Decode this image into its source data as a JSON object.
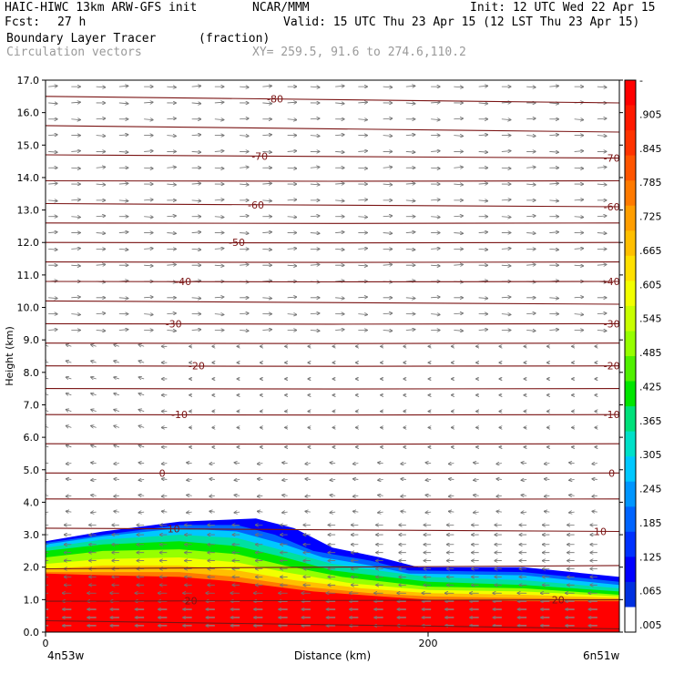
{
  "header": {
    "model": "HAIC-HIWC 13km ARW-GFS init",
    "org": "NCAR/MMM",
    "init": "Init: 12 UTC Wed 22 Apr 15",
    "fcst_label": "Fcst:",
    "fcst_value": "27 h",
    "valid": "Valid: 15 UTC Thu 23 Apr 15 (12 LST Thu 23 Apr 15)",
    "field_name": "Boundary Layer Tracer",
    "field_units": "(fraction)",
    "overlay_name": "Circulation vectors",
    "xy_range": "XY= 259.5, 91.6 to 274.6,110.2"
  },
  "chart_data": {
    "type": "heatmap",
    "ylabel": "Height (km)",
    "xlabel": "Distance (km)",
    "xlim": [
      0,
      300
    ],
    "ylim": [
      0,
      17
    ],
    "x_ticks": [
      0,
      200
    ],
    "x_tick_labels": [
      "0",
      "200"
    ],
    "x_end_labels": [
      "4n53w",
      "6n51w"
    ],
    "y_ticks": [
      0,
      1,
      2,
      3,
      4,
      5,
      6,
      7,
      8,
      9,
      10,
      11,
      12,
      13,
      14,
      15,
      16,
      17
    ],
    "y_tick_labels": [
      "0.0",
      "1.0",
      "2.0",
      "3.0",
      "4.0",
      "5.0",
      "6.0",
      "7.0",
      "8.0",
      "9.0",
      "10.0",
      "11.0",
      "12.0",
      "13.0",
      "14.0",
      "15.0",
      "16.0",
      "17.0"
    ],
    "colorbar": {
      "labels": [
        "-",
        ".905",
        ".845",
        ".785",
        ".725",
        ".665",
        ".605",
        ".545",
        ".485",
        ".425",
        ".365",
        ".305",
        ".245",
        ".185",
        ".125",
        ".065",
        ".005"
      ],
      "colors_top_to_bottom": [
        "#ff0000",
        "#ff1a00",
        "#ff3300",
        "#ff5500",
        "#ff7a00",
        "#ff9e00",
        "#ffbf00",
        "#ffe000",
        "#f2ff00",
        "#c8ff00",
        "#96ff00",
        "#50f000",
        "#00e600",
        "#00e07a",
        "#00e0c8",
        "#00c8ff",
        "#0096ff",
        "#0064ff",
        "#0032ff",
        "#0000ff",
        "#0030e0",
        "#ffffff"
      ]
    },
    "tracer_layers": [
      {
        "level": 0.005,
        "color": "#0000ff",
        "top": [
          [
            0,
            2.8
          ],
          [
            30,
            3.1
          ],
          [
            70,
            3.4
          ],
          [
            110,
            3.5
          ],
          [
            130,
            3.2
          ],
          [
            150,
            2.6
          ],
          [
            175,
            2.3
          ],
          [
            195,
            2.0
          ],
          [
            250,
            2.0
          ],
          [
            300,
            1.7
          ]
        ]
      },
      {
        "level": 0.065,
        "color": "#0064ff",
        "top": [
          [
            0,
            2.75
          ],
          [
            30,
            3.0
          ],
          [
            70,
            3.3
          ],
          [
            100,
            3.3
          ],
          [
            120,
            3.0
          ],
          [
            140,
            2.5
          ],
          [
            170,
            2.2
          ],
          [
            190,
            1.9
          ],
          [
            250,
            1.85
          ],
          [
            300,
            1.55
          ]
        ]
      },
      {
        "level": 0.125,
        "color": "#00c8ff",
        "top": [
          [
            0,
            2.7
          ],
          [
            30,
            2.95
          ],
          [
            70,
            3.2
          ],
          [
            100,
            3.1
          ],
          [
            125,
            2.7
          ],
          [
            145,
            2.3
          ],
          [
            170,
            2.05
          ],
          [
            190,
            1.8
          ],
          [
            250,
            1.75
          ],
          [
            300,
            1.45
          ]
        ]
      },
      {
        "level": 0.185,
        "color": "#00e0a0",
        "top": [
          [
            0,
            2.6
          ],
          [
            30,
            2.85
          ],
          [
            70,
            3.0
          ],
          [
            100,
            2.9
          ],
          [
            125,
            2.5
          ],
          [
            150,
            2.1
          ],
          [
            180,
            1.85
          ],
          [
            200,
            1.7
          ],
          [
            250,
            1.6
          ],
          [
            300,
            1.35
          ]
        ]
      },
      {
        "level": 0.305,
        "color": "#00e600",
        "top": [
          [
            0,
            2.5
          ],
          [
            30,
            2.7
          ],
          [
            70,
            2.8
          ],
          [
            100,
            2.65
          ],
          [
            125,
            2.3
          ],
          [
            150,
            1.9
          ],
          [
            200,
            1.55
          ],
          [
            250,
            1.45
          ],
          [
            300,
            1.25
          ]
        ]
      },
      {
        "level": 0.425,
        "color": "#96ff00",
        "top": [
          [
            0,
            2.3
          ],
          [
            30,
            2.5
          ],
          [
            70,
            2.55
          ],
          [
            100,
            2.4
          ],
          [
            125,
            2.05
          ],
          [
            155,
            1.7
          ],
          [
            200,
            1.4
          ],
          [
            250,
            1.35
          ],
          [
            300,
            1.15
          ]
        ]
      },
      {
        "level": 0.545,
        "color": "#f2ff00",
        "top": [
          [
            0,
            2.1
          ],
          [
            30,
            2.25
          ],
          [
            70,
            2.3
          ],
          [
            100,
            2.15
          ],
          [
            125,
            1.85
          ],
          [
            160,
            1.5
          ],
          [
            200,
            1.3
          ],
          [
            250,
            1.25
          ],
          [
            300,
            1.1
          ]
        ]
      },
      {
        "level": 0.665,
        "color": "#ffbf00",
        "top": [
          [
            0,
            1.95
          ],
          [
            30,
            2.05
          ],
          [
            70,
            2.05
          ],
          [
            100,
            1.9
          ],
          [
            130,
            1.6
          ],
          [
            165,
            1.35
          ],
          [
            200,
            1.2
          ],
          [
            250,
            1.15
          ],
          [
            300,
            1.05
          ]
        ]
      },
      {
        "level": 0.785,
        "color": "#ff7a00",
        "top": [
          [
            0,
            1.85
          ],
          [
            30,
            1.85
          ],
          [
            70,
            1.85
          ],
          [
            100,
            1.7
          ],
          [
            135,
            1.4
          ],
          [
            170,
            1.2
          ],
          [
            200,
            1.1
          ],
          [
            250,
            1.05
          ],
          [
            300,
            1.0
          ]
        ]
      },
      {
        "level": 0.905,
        "color": "#ff0000",
        "top": [
          [
            0,
            1.8
          ],
          [
            30,
            1.75
          ],
          [
            70,
            1.7
          ],
          [
            100,
            1.55
          ],
          [
            140,
            1.25
          ],
          [
            175,
            1.1
          ],
          [
            200,
            1.0
          ],
          [
            250,
            0.95
          ],
          [
            300,
            0.95
          ]
        ]
      }
    ],
    "contours": [
      {
        "label": "-80",
        "left": 16.5,
        "right": 16.3,
        "label_x": [
          120
        ]
      },
      {
        "label": "",
        "left": 15.6,
        "right": 15.4,
        "label_x": []
      },
      {
        "label": "-70",
        "left": 14.7,
        "right": 14.6,
        "label_x": [
          112,
          296
        ]
      },
      {
        "label": "",
        "left": 13.9,
        "right": 13.9,
        "label_x": []
      },
      {
        "label": "-60",
        "left": 13.2,
        "right": 13.1,
        "label_x": [
          110,
          296
        ]
      },
      {
        "label": "",
        "left": 12.6,
        "right": 12.6,
        "label_x": []
      },
      {
        "label": "-50",
        "left": 12.0,
        "right": 12.0,
        "label_x": [
          100
        ]
      },
      {
        "label": "",
        "left": 11.4,
        "right": 11.4,
        "label_x": []
      },
      {
        "label": "-40",
        "left": 10.8,
        "right": 10.8,
        "label_x": [
          72,
          296
        ]
      },
      {
        "label": "",
        "left": 10.2,
        "right": 10.1,
        "label_x": []
      },
      {
        "label": "-30",
        "left": 9.5,
        "right": 9.5,
        "label_x": [
          67,
          296
        ]
      },
      {
        "label": "",
        "left": 8.9,
        "right": 8.9,
        "label_x": []
      },
      {
        "label": "-20",
        "left": 8.2,
        "right": 8.2,
        "label_x": [
          79,
          296
        ]
      },
      {
        "label": "",
        "left": 7.5,
        "right": 7.5,
        "label_x": []
      },
      {
        "label": "-10",
        "left": 6.7,
        "right": 6.7,
        "label_x": [
          70,
          296
        ]
      },
      {
        "label": "",
        "left": 5.8,
        "right": 5.8,
        "label_x": []
      },
      {
        "label": "0",
        "left": 4.9,
        "right": 4.9,
        "label_x": [
          61,
          296
        ]
      },
      {
        "label": "",
        "left": 4.1,
        "right": 4.1,
        "label_x": []
      },
      {
        "label": "10",
        "left": 3.2,
        "right": 3.1,
        "label_x": [
          67,
          290
        ]
      },
      {
        "label": "",
        "left": 1.95,
        "right": 2.05,
        "label_x": []
      },
      {
        "label": "20",
        "left": 0.95,
        "right": 1.0,
        "label_x": [
          76,
          268
        ]
      },
      {
        "label": "",
        "left": 0.35,
        "right": 0.1,
        "label_x": []
      }
    ],
    "vector_columns_km": [
      0,
      12,
      25,
      37,
      50,
      62,
      75,
      87,
      100,
      112,
      125,
      137,
      150,
      162,
      175,
      187,
      200,
      212,
      225,
      237,
      250,
      262,
      275,
      287
    ],
    "vector_rows_km": [
      0.2,
      0.45,
      0.7,
      0.95,
      1.2,
      1.45,
      1.7,
      1.95,
      2.2,
      2.45,
      2.7,
      3.0,
      3.3,
      3.7,
      4.2,
      4.7,
      5.2,
      5.7,
      6.3,
      6.8,
      7.3,
      7.8,
      8.3,
      8.8,
      9.3,
      9.8,
      10.3,
      10.8,
      11.3,
      11.8,
      12.3,
      12.8,
      13.3,
      13.8,
      14.3,
      14.8,
      15.3,
      15.8,
      16.3,
      16.8
    ]
  }
}
